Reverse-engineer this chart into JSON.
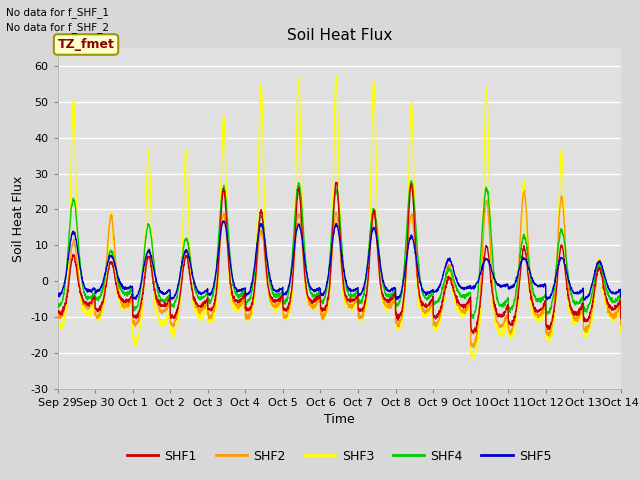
{
  "title": "Soil Heat Flux",
  "xlabel": "Time",
  "ylabel": "Soil Heat Flux",
  "ylim": [
    -30,
    65
  ],
  "yticks": [
    -30,
    -20,
    -10,
    0,
    10,
    20,
    30,
    40,
    50,
    60
  ],
  "x_tick_labels": [
    "Sep 29",
    "Sep 30",
    "Oct 1",
    "Oct 2",
    "Oct 3",
    "Oct 4",
    "Oct 5",
    "Oct 6",
    "Oct 7",
    "Oct 8",
    "Oct 9",
    "Oct 10",
    "Oct 11",
    "Oct 12",
    "Oct 13",
    "Oct 14"
  ],
  "annotation_text1": "No data for f_SHF_1",
  "annotation_text2": "No data for f_SHF_2",
  "legend_box_text": "TZ_fmet",
  "legend_box_color": "#ffffcc",
  "legend_box_border": "#999900",
  "shf1_color": "#cc0000",
  "shf2_color": "#ff9900",
  "shf3_color": "#ffff00",
  "shf4_color": "#00cc00",
  "shf5_color": "#0000cc",
  "background_color": "#d8d8d8",
  "plot_bg_color": "#e0e0e0",
  "grid_color": "#ffffff",
  "shf_lw": 1.0,
  "title_fontsize": 11,
  "label_fontsize": 9,
  "tick_fontsize": 8,
  "days": 15,
  "peak_centers": [
    0.42,
    0.42,
    0.42,
    0.42,
    0.42,
    0.42,
    0.42,
    0.42,
    0.42,
    0.42,
    0.42,
    0.42,
    0.42,
    0.42,
    0.42
  ],
  "shf3_peaks": [
    54,
    22,
    41,
    41,
    49,
    57,
    59,
    60,
    59,
    54,
    8,
    60,
    32,
    41,
    10
  ],
  "shf3_nights": [
    -13,
    -10,
    -17,
    -14,
    -11,
    -10,
    -10,
    -10,
    -10,
    -13,
    -13,
    -21,
    -15,
    -16,
    -15
  ],
  "shf2_peaks": [
    14,
    21,
    12,
    12,
    22,
    17,
    22,
    22,
    22,
    22,
    8,
    28,
    29,
    28,
    10
  ],
  "shf2_nights": [
    -10,
    -10,
    -12,
    -12,
    -10,
    -10,
    -10,
    -10,
    -10,
    -12,
    -12,
    -18,
    -14,
    -15,
    -14
  ],
  "shf4_peaks": [
    25,
    10,
    18,
    14,
    28,
    20,
    29,
    27,
    22,
    30,
    5,
    29,
    15,
    17,
    7
  ],
  "shf4_nights": [
    -7,
    -5,
    -8,
    -7,
    -6,
    -6,
    -6,
    -6,
    -6,
    -7,
    -6,
    -10,
    -8,
    -9,
    -8
  ],
  "shf1_peaks": [
    10,
    8,
    10,
    10,
    28,
    22,
    28,
    30,
    22,
    30,
    4,
    14,
    13,
    14,
    7
  ],
  "shf1_nights": [
    -9,
    -8,
    -10,
    -10,
    -8,
    -8,
    -8,
    -8,
    -8,
    -10,
    -10,
    -14,
    -12,
    -13,
    -11
  ],
  "shf5_peaks": [
    15,
    8,
    10,
    10,
    18,
    17,
    17,
    17,
    16,
    14,
    7,
    7,
    7,
    8,
    7
  ],
  "shf5_nights": [
    -4,
    -3,
    -5,
    -5,
    -4,
    -4,
    -4,
    -4,
    -4,
    -5,
    -3,
    -2,
    -2,
    -5,
    -5
  ]
}
